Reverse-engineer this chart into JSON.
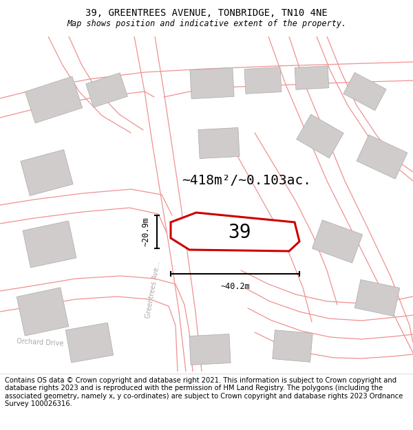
{
  "title_line1": "39, GREENTREES AVENUE, TONBRIDGE, TN10 4NE",
  "title_line2": "Map shows position and indicative extent of the property.",
  "footer_text": "Contains OS data © Crown copyright and database right 2021. This information is subject to Crown copyright and database rights 2023 and is reproduced with the permission of HM Land Registry. The polygons (including the associated geometry, namely x, y co-ordinates) are subject to Crown copyright and database rights 2023 Ordnance Survey 100026316.",
  "area_label": "~418m²/~0.103ac.",
  "property_number": "39",
  "dim_width": "~40.2m",
  "dim_height": "~20.9m",
  "road_label_greentrees": "Greentrees Ave...",
  "road_label_orchard": "Orchard Drive",
  "map_bg": "#eeecea",
  "building_color": "#d0cccc",
  "road_outline_color": "#f09090",
  "property_outline_color": "#cc0000",
  "property_fill": "#ffffff",
  "dim_line_color": "#000000",
  "title_fontsize": 10,
  "subtitle_fontsize": 8.5,
  "footer_fontsize": 7.2,
  "area_fontsize": 14,
  "number_fontsize": 20
}
